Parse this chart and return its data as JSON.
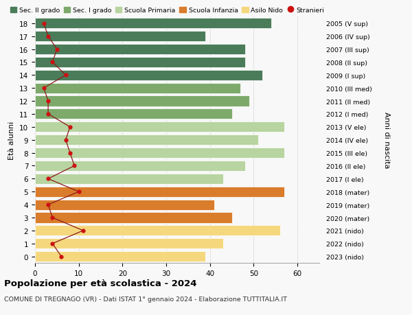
{
  "ages": [
    18,
    17,
    16,
    15,
    14,
    13,
    12,
    11,
    10,
    9,
    8,
    7,
    6,
    5,
    4,
    3,
    2,
    1,
    0
  ],
  "year_labels": [
    "2005 (V sup)",
    "2006 (IV sup)",
    "2007 (III sup)",
    "2008 (II sup)",
    "2009 (I sup)",
    "2010 (III med)",
    "2011 (II med)",
    "2012 (I med)",
    "2013 (V ele)",
    "2014 (IV ele)",
    "2015 (III ele)",
    "2016 (II ele)",
    "2017 (I ele)",
    "2018 (mater)",
    "2019 (mater)",
    "2020 (mater)",
    "2021 (nido)",
    "2022 (nido)",
    "2023 (nido)"
  ],
  "bar_values": [
    54,
    39,
    48,
    48,
    52,
    47,
    49,
    45,
    57,
    51,
    57,
    48,
    43,
    57,
    41,
    45,
    56,
    43,
    39
  ],
  "stranieri": [
    2,
    3,
    5,
    4,
    7,
    2,
    3,
    3,
    8,
    7,
    8,
    9,
    3,
    10,
    3,
    4,
    11,
    4,
    6
  ],
  "bar_colors": [
    "#4a7c59",
    "#4a7c59",
    "#4a7c59",
    "#4a7c59",
    "#4a7c59",
    "#7daa6b",
    "#7daa6b",
    "#7daa6b",
    "#b8d4a0",
    "#b8d4a0",
    "#b8d4a0",
    "#b8d4a0",
    "#b8d4a0",
    "#d97c2b",
    "#d97c2b",
    "#d97c2b",
    "#f5d87e",
    "#f5d87e",
    "#f5d87e"
  ],
  "legend_items": [
    {
      "label": "Sec. II grado",
      "color": "#4a7c59",
      "type": "patch"
    },
    {
      "label": "Sec. I grado",
      "color": "#7daa6b",
      "type": "patch"
    },
    {
      "label": "Scuola Primaria",
      "color": "#b8d4a0",
      "type": "patch"
    },
    {
      "label": "Scuola Infanzia",
      "color": "#d97c2b",
      "type": "patch"
    },
    {
      "label": "Asilo Nido",
      "color": "#f5d87e",
      "type": "patch"
    },
    {
      "label": "Stranieri",
      "color": "#cc1111",
      "type": "circle"
    }
  ],
  "title": "Popolazione per età scolastica - 2024",
  "subtitle": "COMUNE DI TREGNAGO (VR) - Dati ISTAT 1° gennaio 2024 - Elaborazione TUTTITALIA.IT",
  "ylabel_left": "Età alunni",
  "ylabel_right": "Anni di nascita",
  "xlim": [
    0,
    65
  ],
  "xticks": [
    0,
    10,
    20,
    30,
    40,
    50,
    60
  ],
  "background_color": "#f8f8f8",
  "grid_color": "#cccccc",
  "stranieri_line_color": "#8b1a1a",
  "stranieri_dot_color": "#cc1111"
}
